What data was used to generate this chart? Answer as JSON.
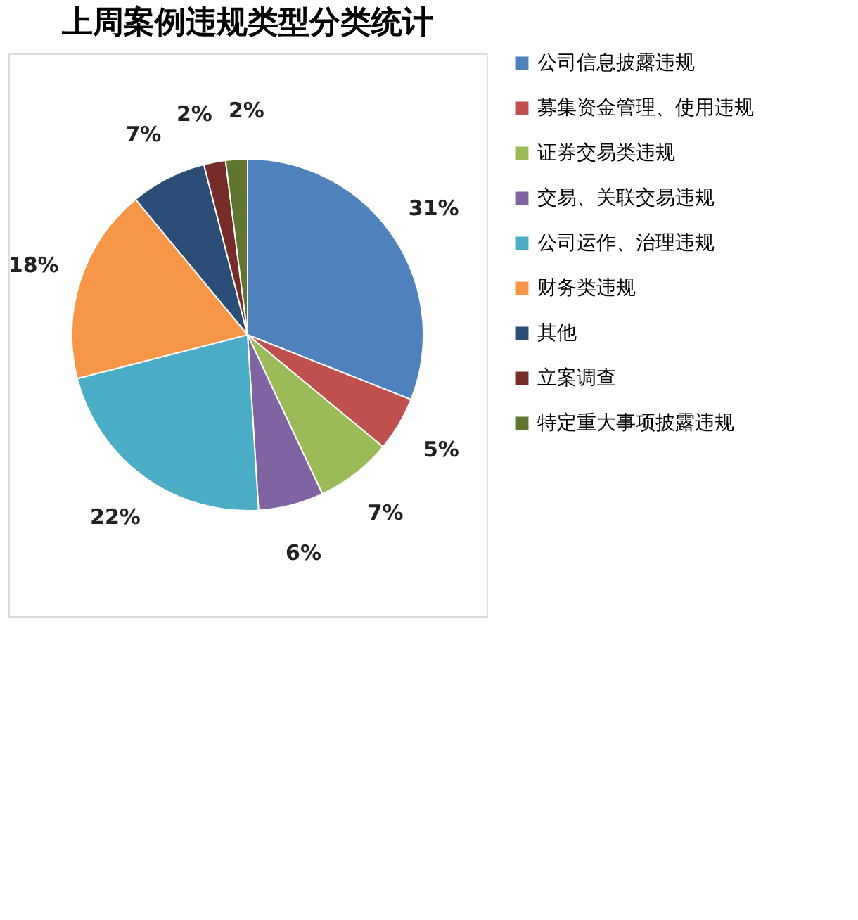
{
  "chart_data": {
    "type": "pie",
    "title": "上周案例违规类型分类统计",
    "categories": [
      "公司信息披露违规",
      "募集资金管理、使用违规",
      "证券交易类违规",
      "交易、关联交易违规",
      "公司运作、治理违规",
      "财务类违规",
      "其他",
      "立案调查",
      "特定重大事项披露违规"
    ],
    "values": [
      31,
      5,
      7,
      6,
      22,
      18,
      7,
      2,
      2
    ],
    "colors": [
      "#4f81bd",
      "#c0504d",
      "#9bbb59",
      "#8064a2",
      "#4bacc6",
      "#f79646",
      "#2c4d75",
      "#772c2a",
      "#5f7530"
    ],
    "value_labels": [
      "31%",
      "5%",
      "7%",
      "6%",
      "22%",
      "18%",
      "7%",
      "2%",
      "2%"
    ],
    "legend": "right"
  }
}
